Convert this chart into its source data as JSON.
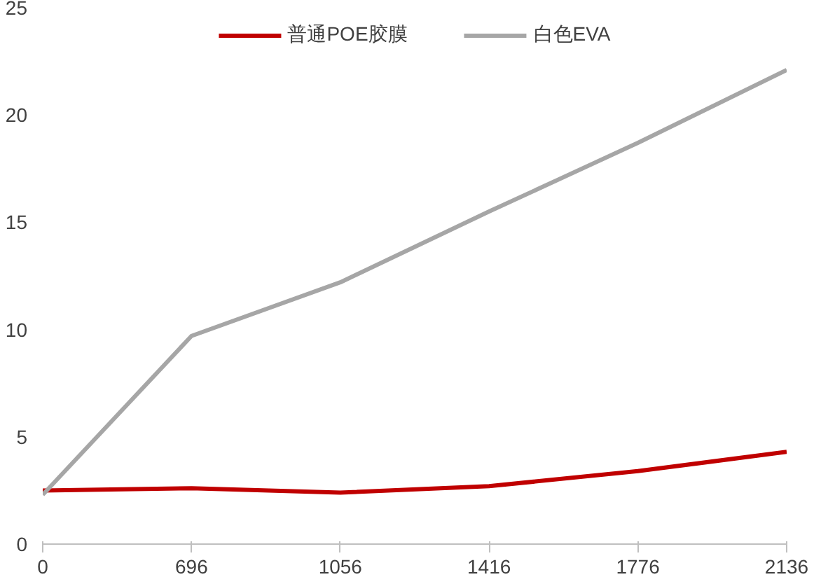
{
  "chart_data": {
    "type": "line",
    "categories": [
      "0",
      "696",
      "1056",
      "1416",
      "1776",
      "2136"
    ],
    "series": [
      {
        "name": "普通POE胶膜",
        "color": "#c00000",
        "values": [
          2.5,
          2.6,
          2.4,
          2.7,
          3.4,
          4.3
        ]
      },
      {
        "name": "白色EVA",
        "color": "#a6a6a6",
        "values": [
          2.3,
          9.7,
          12.2,
          15.5,
          18.7,
          22.1
        ]
      }
    ],
    "ylim": [
      0,
      25
    ],
    "yticks": [
      0,
      5,
      10,
      15,
      20,
      25
    ],
    "grid": false,
    "legend": "top",
    "marker": "none",
    "line_style": "solid"
  }
}
